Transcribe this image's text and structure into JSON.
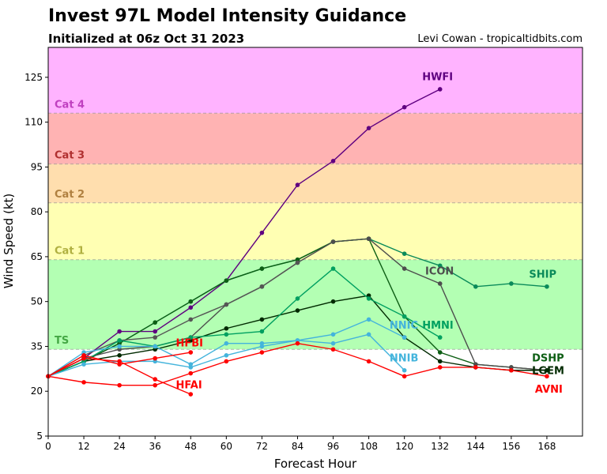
{
  "chart_data": {
    "type": "line",
    "title": "Invest 97L Model Intensity Guidance",
    "subtitle": "Initialized at 06z Oct 31 2023",
    "credit": "Levi Cowan - tropicaltidbits.com",
    "xlabel": "Forecast Hour",
    "ylabel": "Wind Speed (kt)",
    "xlim": [
      0,
      180
    ],
    "ylim": [
      5,
      135
    ],
    "xticks": [
      0,
      12,
      24,
      36,
      48,
      60,
      72,
      84,
      96,
      108,
      120,
      132,
      144,
      156,
      168
    ],
    "yticks": [
      5,
      20,
      35,
      50,
      65,
      80,
      95,
      110,
      125
    ],
    "bands": [
      {
        "label": "TS",
        "from": 34,
        "to": 64,
        "color": "#b3ffb3",
        "label_color": "#44a844"
      },
      {
        "label": "Cat 1",
        "from": 64,
        "to": 83,
        "color": "#ffffb3",
        "label_color": "#b0b040"
      },
      {
        "label": "Cat 2",
        "from": 83,
        "to": 96,
        "color": "#ffdeae",
        "label_color": "#b08040"
      },
      {
        "label": "Cat 3",
        "from": 96,
        "to": 113,
        "color": "#ffb3b3",
        "label_color": "#b03030"
      },
      {
        "label": "Cat 4",
        "from": 113,
        "to": 135,
        "color": "#ffb3ff",
        "label_color": "#c040c0"
      }
    ],
    "series": [
      {
        "name": "HWFI",
        "color": "#5f0080",
        "x": [
          0,
          12,
          24,
          36,
          48,
          60,
          72,
          84,
          96,
          108,
          120,
          132
        ],
        "y": [
          25,
          31,
          40,
          40,
          48,
          57,
          73,
          89,
          97,
          108,
          115,
          121
        ]
      },
      {
        "name": "SHIP",
        "color": "#0a8a5a",
        "x": [
          0,
          12,
          24,
          36,
          48,
          60,
          72,
          84,
          96,
          108,
          120,
          132,
          144,
          156,
          168
        ],
        "y": [
          25,
          30,
          36,
          43,
          50,
          57,
          61,
          64,
          70,
          71,
          66,
          62,
          55,
          56,
          55
        ]
      },
      {
        "name": "DSHP",
        "color": "#0d5e14",
        "x": [
          0,
          12,
          24,
          36,
          48,
          60,
          72,
          84,
          96,
          108,
          120,
          132,
          144,
          156,
          168
        ],
        "y": [
          25,
          30,
          36,
          43,
          50,
          57,
          61,
          64,
          70,
          71,
          45,
          33,
          29,
          28,
          27
        ]
      },
      {
        "name": "ICON",
        "color": "#4d4d4d",
        "x": [
          0,
          12,
          24,
          36,
          48,
          60,
          72,
          84,
          96,
          108,
          120,
          132,
          144,
          156,
          168
        ],
        "y": [
          25,
          31,
          34,
          35,
          38,
          49,
          55,
          63,
          70,
          71,
          61,
          56,
          29,
          28,
          27
        ]
      },
      {
        "name": "ICON2",
        "label": "",
        "color": "#555555",
        "x": [
          0,
          12,
          24,
          36,
          48,
          60,
          72,
          84
        ],
        "y": [
          25,
          32,
          37,
          38,
          44,
          49,
          55,
          63
        ]
      },
      {
        "name": "LGEM",
        "color": "#002a00",
        "x": [
          0,
          12,
          24,
          36,
          48,
          60,
          72,
          84,
          96,
          108,
          120,
          132,
          144,
          156,
          168
        ],
        "y": [
          25,
          30,
          32,
          34,
          37,
          41,
          44,
          47,
          50,
          52,
          38,
          30,
          28,
          27,
          27
        ]
      },
      {
        "name": "HMNI",
        "color": "#00a060",
        "x": [
          0,
          12,
          24,
          36,
          48,
          60,
          72,
          84,
          96,
          108,
          120,
          132
        ],
        "y": [
          25,
          30,
          37,
          35,
          38,
          39,
          40,
          51,
          61,
          51,
          45,
          38
        ]
      },
      {
        "name": "NNIC",
        "color": "#44b4dc",
        "x": [
          0,
          12,
          24,
          36,
          48,
          60,
          72,
          84,
          96,
          108,
          120
        ],
        "y": [
          25,
          33,
          35,
          35,
          29,
          36,
          36,
          37,
          39,
          44,
          38
        ]
      },
      {
        "name": "NNIB",
        "color": "#44b4dc",
        "x": [
          0,
          12,
          24,
          36,
          48,
          60,
          72,
          84,
          96,
          108,
          120
        ],
        "y": [
          25,
          29,
          30,
          30,
          28,
          32,
          35,
          37,
          36,
          39,
          27
        ]
      },
      {
        "name": "AVNI",
        "color": "#ff0000",
        "x": [
          0,
          12,
          24,
          36,
          48,
          60,
          72,
          84,
          96,
          108,
          120,
          132,
          144,
          156,
          168
        ],
        "y": [
          25,
          23,
          22,
          22,
          26,
          30,
          33,
          36,
          34,
          30,
          25,
          28,
          28,
          27,
          25
        ]
      },
      {
        "name": "HFBI",
        "color": "#ff0000",
        "x": [
          0,
          12,
          24,
          36,
          48
        ],
        "y": [
          25,
          32,
          29,
          31,
          33
        ]
      },
      {
        "name": "HFAI",
        "color": "#ff0000",
        "x": [
          0,
          12,
          24,
          36,
          48
        ],
        "y": [
          25,
          31,
          30,
          24,
          19
        ]
      }
    ],
    "labels": [
      {
        "text": "HWFI",
        "x": 126,
        "y": 124,
        "color": "#5f0080"
      },
      {
        "text": "SHIP",
        "x": 162,
        "y": 58,
        "color": "#0a8a5a"
      },
      {
        "text": "ICON",
        "x": 127,
        "y": 59,
        "color": "#4d4d4d"
      },
      {
        "text": "NNIC",
        "x": 115,
        "y": 41,
        "color": "#44b4dc"
      },
      {
        "text": "HMNI",
        "x": 126,
        "y": 41,
        "color": "#00a060"
      },
      {
        "text": "NNIB",
        "x": 115,
        "y": 30,
        "color": "#44b4dc"
      },
      {
        "text": "HFBI",
        "x": 43,
        "y": 35,
        "color": "#ff0000"
      },
      {
        "text": "HFAI",
        "x": 43,
        "y": 21,
        "color": "#ff0000"
      },
      {
        "text": "DSHP",
        "x": 163,
        "y": 30,
        "color": "#0d5e14"
      },
      {
        "text": "LGEM",
        "x": 163,
        "y": 30,
        "color": "#002a00"
      },
      {
        "text": "AVNI",
        "x": 164,
        "y": 28,
        "color": "#ff0000"
      }
    ]
  }
}
